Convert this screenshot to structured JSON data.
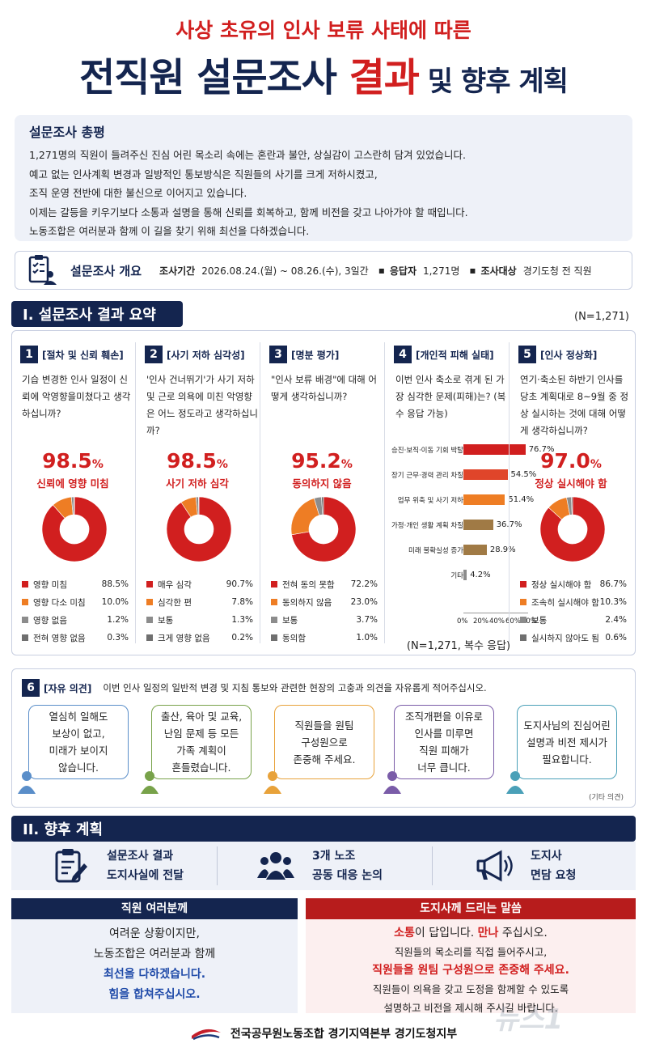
{
  "header": {
    "subtitle": "사상 초유의 인사 보류 사태에 따른",
    "title_part1": "전직원 설문조사 ",
    "title_accent": "결과",
    "title_part2": " 및 향후 계획"
  },
  "summary": {
    "heading": "설문조사 총평",
    "lines": [
      "1,271명의 직원이 들려주신 진심 어린 목소리 속에는 혼란과 불안, 상실감이 고스란히 담겨 있었습니다.",
      "예고 없는 인사계획 변경과 일방적인 통보방식은 직원들의 사기를 크게 저하시켰고,",
      "조직 운영 전반에 대한 불신으로 이어지고 있습니다.",
      "이제는 갈등을 키우기보다 소통과 설명을 통해 신뢰를 회복하고, 함께 비전을 갖고 나아가야 할 때입니다.",
      "노동조합은 여러분과 함께 이 길을 찾기 위해 최선을 다하겠습니다."
    ]
  },
  "overview": {
    "title": "설문조사 개요",
    "period_label": "조사기간",
    "period_value": "2026.08.24.(월) ~ 08.26.(수), 3일간",
    "respondents_label": "응답자",
    "respondents_value": "1,271명",
    "target_label": "조사대상",
    "target_value": "경기도청 전 직원",
    "bullet": "▪"
  },
  "section1": {
    "title": "I. 설문조사 결과 요약",
    "n_total": "(N=1,271)"
  },
  "questions": [
    {
      "num": "1",
      "label": "[절차 및 신뢰 훼손]",
      "text": "기습 변경한 인사 일정이 신뢰에 악영향을미쳤다고 생각하십니까?",
      "big_value": "98.5",
      "pct_sign": "%",
      "big_label": "신뢰에 영향 미침",
      "legend": [
        {
          "label": "영향 미침",
          "value": "88.5%"
        },
        {
          "label": "영향 다소 미침",
          "value": "10.0%"
        },
        {
          "label": "영향 없음",
          "value": "1.2%"
        },
        {
          "label": "전혀 영향 없음",
          "value": "0.3%"
        }
      ]
    },
    {
      "num": "2",
      "label": "[사기 저하 심각성]",
      "text": "'인사 건너뛰기'가 사기 저하 및 근로 의욕에 미친 악영향은 어느 정도라고 생각하십니까?",
      "big_value": "98.5",
      "pct_sign": "%",
      "big_label": "사기 저하 심각",
      "legend": [
        {
          "label": "매우 심각",
          "value": "90.7%"
        },
        {
          "label": "심각한 편",
          "value": "7.8%"
        },
        {
          "label": "보통",
          "value": "1.3%"
        },
        {
          "label": "크게 영향 없음",
          "value": "0.2%"
        }
      ]
    },
    {
      "num": "3",
      "label": "[명분 평가]",
      "text": "\"인사 보류 배경\"에 대해 어떻게 생각하십니까?",
      "big_value": "95.2",
      "pct_sign": "%",
      "big_label": "동의하지 않음",
      "legend": [
        {
          "label": "전혀 동의 못함",
          "value": "72.2%"
        },
        {
          "label": "동의하지 않음",
          "value": "23.0%"
        },
        {
          "label": "보통",
          "value": "3.7%"
        },
        {
          "label": "동의함",
          "value": "1.0%"
        }
      ]
    },
    {
      "num": "4",
      "label": "[개인적 피해 실태]",
      "text": "이번 인사 축소로 겪게 된 가장 심각한 문제(피해)는? (복수 응답 가능)",
      "note": "(N=1,271, 복수 응답)"
    },
    {
      "num": "5",
      "label": "[인사 정상화]",
      "text": "연기·축소된 하반기 인사를 당초 계획대로 8~9월 중 정상 실시하는 것에 대해 어떻게 생각하십니까?",
      "big_value": "97.0",
      "pct_sign": "%",
      "big_label": "정상 실시해야 함",
      "legend": [
        {
          "label": "정상 실시해야 함",
          "value": "86.7%"
        },
        {
          "label": "조속히 실시해야 함",
          "value": "10.3%"
        },
        {
          "label": "보통",
          "value": "2.4%"
        },
        {
          "label": "실시하지 않아도 됨",
          "value": "0.6%"
        }
      ]
    }
  ],
  "chart_data": [
    {
      "type": "pie",
      "categories": [
        "영향 미침",
        "영향 다소 미침",
        "영향 없음",
        "전혀 영향 없음"
      ],
      "values": [
        88.5,
        10.0,
        1.2,
        0.3
      ],
      "colors": [
        "#d11f1f",
        "#ee7d24",
        "#8c8c8c",
        "#6f6f6f"
      ]
    },
    {
      "type": "pie",
      "categories": [
        "매우 심각",
        "심각한 편",
        "보통",
        "크게 영향 없음"
      ],
      "values": [
        90.7,
        7.8,
        1.3,
        0.2
      ],
      "colors": [
        "#d11f1f",
        "#ee7d24",
        "#8c8c8c",
        "#6f6f6f"
      ]
    },
    {
      "type": "pie",
      "categories": [
        "전혀 동의 못함",
        "동의하지 않음",
        "보통",
        "동의함"
      ],
      "values": [
        72.2,
        23.0,
        3.7,
        1.0
      ],
      "colors": [
        "#d11f1f",
        "#ee7d24",
        "#8c8c8c",
        "#6f6f6f"
      ]
    },
    {
      "type": "bar",
      "orientation": "horizontal",
      "categories": [
        "승진·보직·이동 기회 박탈",
        "장기 근무·경력 관리 차질",
        "업무 위축 및 사기 저하",
        "가정·개인 생활 계획 차질",
        "미래 불확실성 증가",
        "기타"
      ],
      "values": [
        76.7,
        54.5,
        51.4,
        36.7,
        28.9,
        4.2
      ],
      "value_labels": [
        "76.7%",
        "54.5%",
        "51.4%",
        "36.7%",
        "28.9%",
        "4.2%"
      ],
      "colors": [
        "#d11f1f",
        "#e0452a",
        "#ee7d24",
        "#a07a45",
        "#a07a45",
        "#8c8c8c"
      ],
      "xlim": [
        0,
        80
      ],
      "xticks": [
        "0%",
        "20%",
        "40%",
        "60%",
        "80%"
      ]
    },
    {
      "type": "pie",
      "categories": [
        "정상 실시해야 함",
        "조속히 실시해야 함",
        "보통",
        "실시하지 않아도 됨"
      ],
      "values": [
        86.7,
        10.3,
        2.4,
        0.6
      ],
      "colors": [
        "#d11f1f",
        "#ee7d24",
        "#8c8c8c",
        "#6f6f6f"
      ]
    }
  ],
  "opinion": {
    "num": "6",
    "label": "[자유 의견]",
    "question": "이번 인사 일정의 일반적 변경 및 지침 통보와 관련한 현장의 고충과 의견을 자유롭게 적어주십시오.",
    "bubbles": [
      {
        "lines": [
          "열심히 일해도",
          "보상이 없고,",
          "미래가 보이지",
          "않습니다."
        ],
        "color": "#5a8ec9"
      },
      {
        "lines": [
          "출산, 육아 및 교육,",
          "난임 문제 등 모든",
          "가족 계획이",
          "흔들렸습니다."
        ],
        "color": "#78a24a"
      },
      {
        "lines": [
          "직원들을 원팀",
          "구성원으로",
          "존중해 주세요."
        ],
        "color": "#e8a23a"
      },
      {
        "lines": [
          "조직개편을 이유로",
          "인사를 미루면",
          "직원 피해가",
          "너무 큽니다."
        ],
        "color": "#7a5ca8"
      },
      {
        "lines": [
          "도지사님의 진심어린",
          "설명과 비전 제시가",
          "필요합니다."
        ],
        "color": "#4aa0b8"
      }
    ],
    "etc": "(기타 의견)"
  },
  "section2": {
    "title": "II. 향후 계획"
  },
  "plans": [
    {
      "line1": "설문조사 결과",
      "line2": "도지사실에 전달",
      "icon": "clipboard-icon"
    },
    {
      "line1": "3개 노조",
      "line2": "공동 대응 논의",
      "icon": "group-icon"
    },
    {
      "line1": "도지사",
      "line2": "면담 요청",
      "icon": "megaphone-icon"
    }
  ],
  "staff_box": {
    "title": "직원 여러분께",
    "line1": "여려운 상황이지만,",
    "line2": "노동조합은 여러분과 함께",
    "line3": "최선을 다하겠습니다.",
    "line4": "힘을 합쳐주십시오."
  },
  "governor_box": {
    "title": "도지사께 드리는 말씀",
    "l1_a": "소통",
    "l1_b": "이 답입니다. ",
    "l1_c": "만나",
    "l1_d": " 주십시오.",
    "line2": "직원들의 목소리를 직접 들어주시고,",
    "line3": "직원들을 원팀 구성원으로 존중해 주세요.",
    "line4": "직원들이 의욕을 갖고 도정을 함께할 수 있도록",
    "line5": "설명하고 비전을 제시해 주시길 바랍니다."
  },
  "footer": {
    "org": "전국공무원노동조합 경기지역본부 경기도청지부"
  },
  "watermark": "뉴스1"
}
